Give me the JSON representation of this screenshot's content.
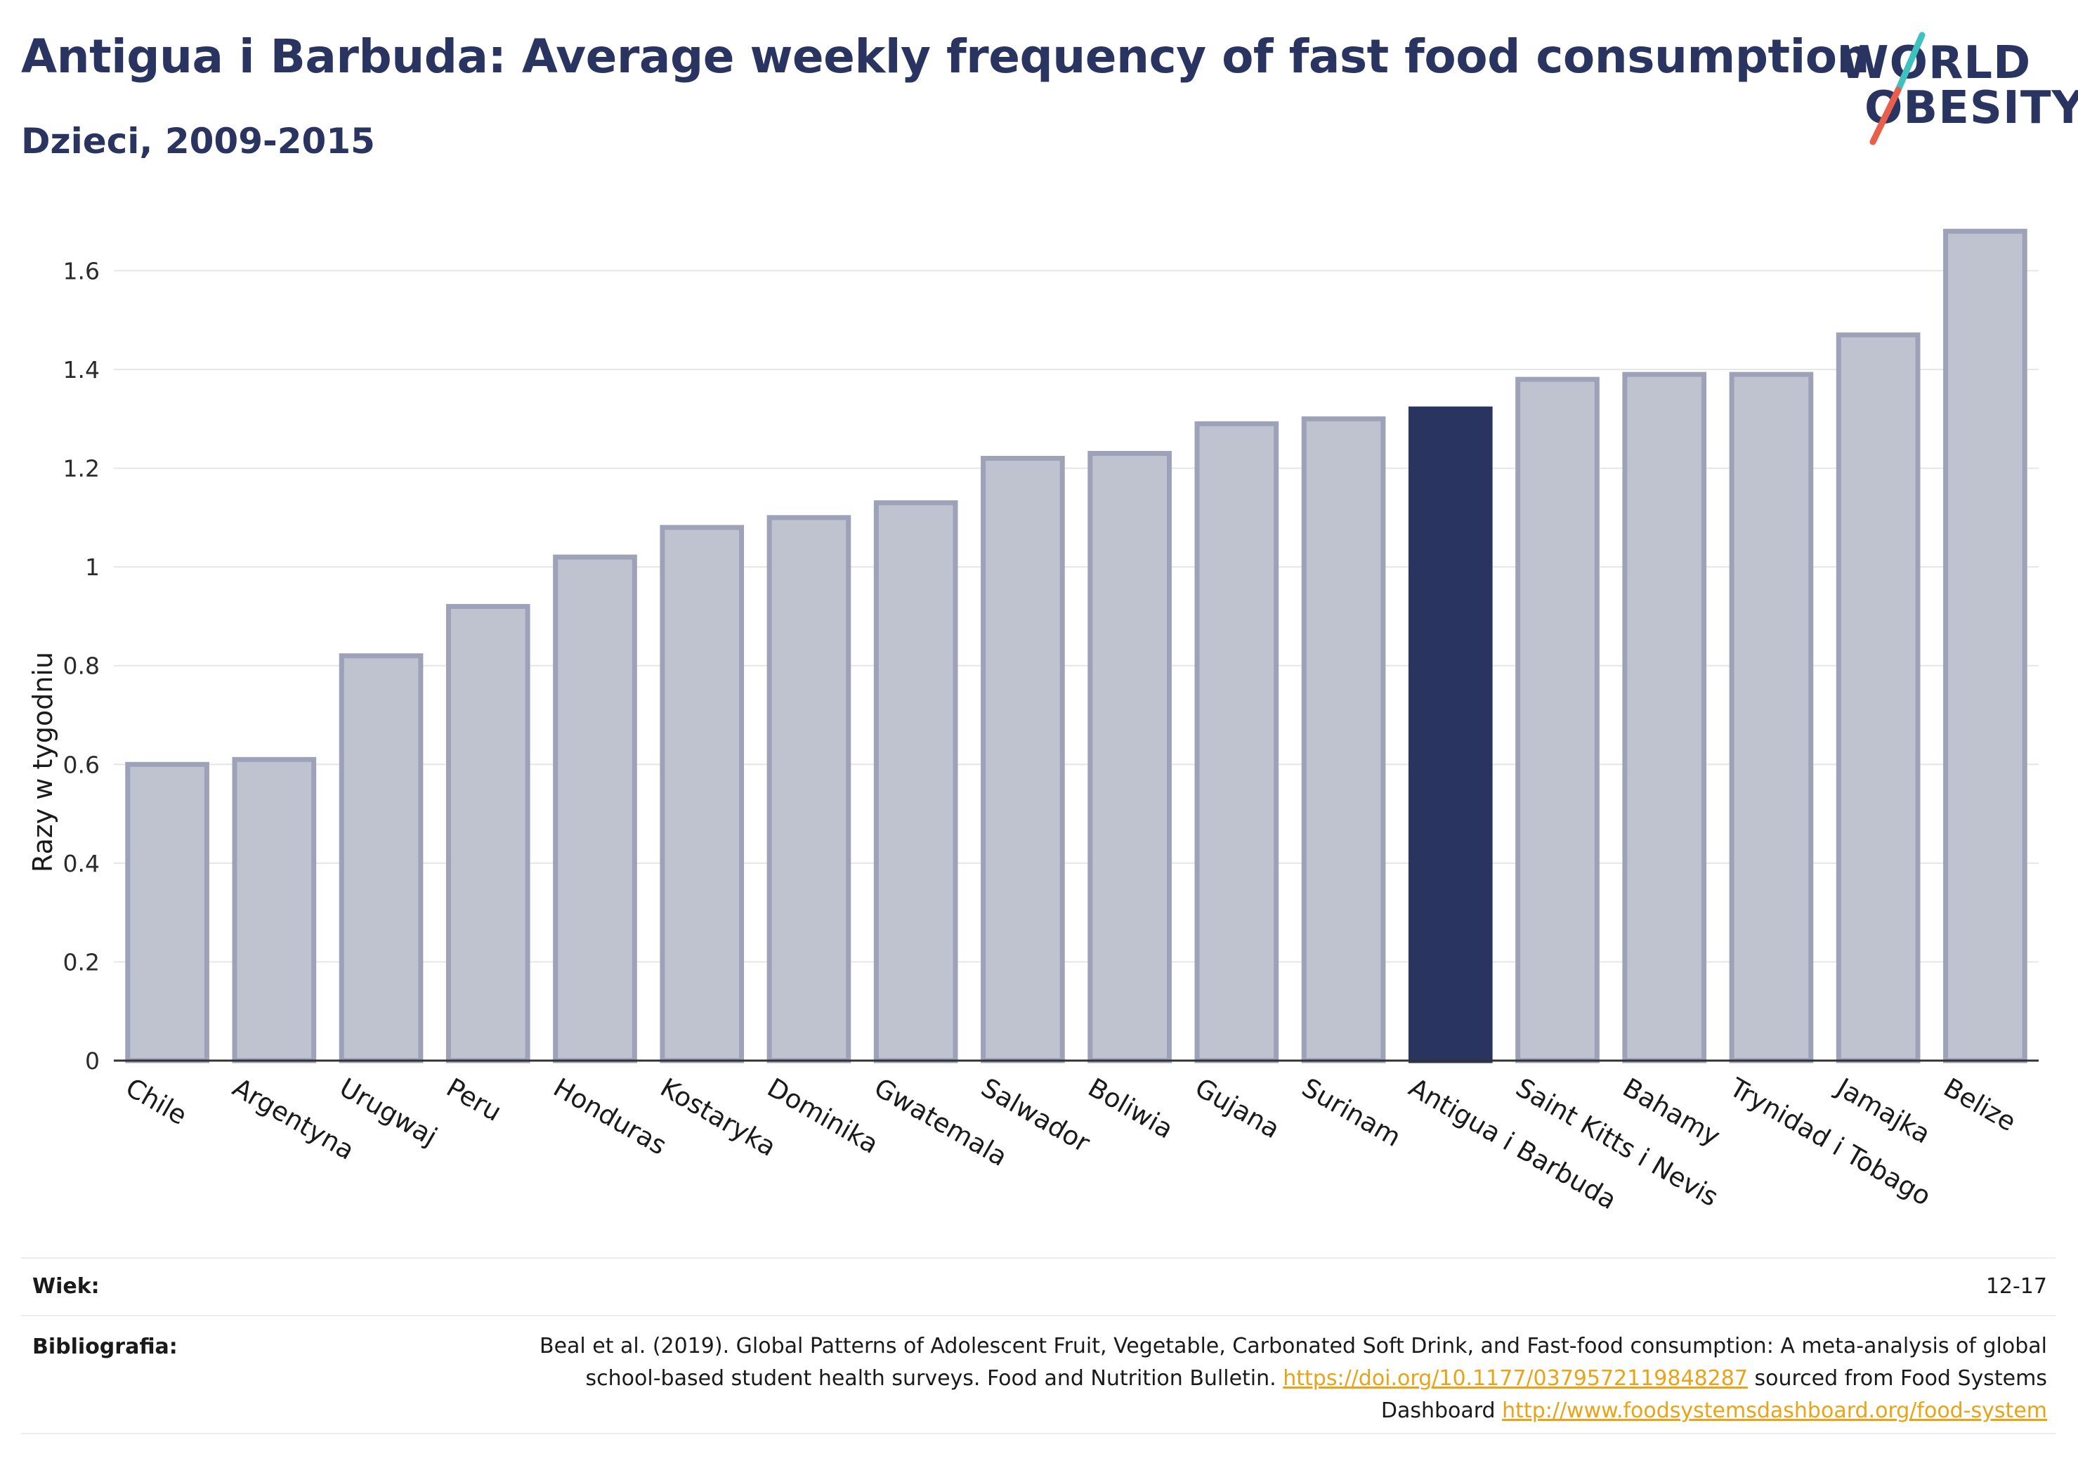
{
  "header": {
    "title": "Antigua i Barbuda: Average weekly frequency of fast food consumption",
    "subtitle": "Dzieci, 2009-2015"
  },
  "logo": {
    "line1": "WORLD",
    "line2": "OBESITY",
    "accent_colors": [
      "#3fc1c0",
      "#e8604c"
    ]
  },
  "chart_data": {
    "type": "bar",
    "title": "Antigua i Barbuda: Average weekly frequency of fast food consumption",
    "subtitle": "Dzieci, 2009-2015",
    "xlabel": "",
    "ylabel": "Razy w tygodniu",
    "ylim": [
      0,
      1.75
    ],
    "yticks": [
      "0",
      "0.2",
      "0.4",
      "0.6",
      "0.8",
      "1",
      "1.2",
      "1.4",
      "1.6"
    ],
    "grid": true,
    "legend": "none",
    "categories": [
      "Chile",
      "Argentyna",
      "Urugwaj",
      "Peru",
      "Honduras",
      "Kostaryka",
      "Dominika",
      "Gwatemala",
      "Salwador",
      "Boliwia",
      "Gujana",
      "Surinam",
      "Antigua i Barbuda",
      "Saint Kitts i Nevis",
      "Bahamy",
      "Trynidad i Tobago",
      "Jamajka",
      "Belize"
    ],
    "values": [
      0.6,
      0.61,
      0.82,
      0.92,
      1.02,
      1.08,
      1.1,
      1.13,
      1.22,
      1.23,
      1.29,
      1.3,
      1.32,
      1.38,
      1.39,
      1.39,
      1.47,
      1.68
    ],
    "highlight": "Antigua i Barbuda",
    "colors": {
      "bar": "#bfc2cf",
      "bar_border": "#9ea2b8",
      "highlight": "#2a3460",
      "gridline": "#e6e6e6",
      "axis": "#333333"
    }
  },
  "footer": {
    "age_label": "Wiek:",
    "age_value": "12-17",
    "bib_label": "Bibliografia:",
    "bib_text_1": "Beal et al. (2019). Global Patterns of Adolescent Fruit, Vegetable, Carbonated Soft Drink, and Fast-food consumption: A meta-analysis of global school-based student health surveys. Food and Nutrition Bulletin.",
    "bib_link_1": "https://doi.org/10.1177/0379572119848287",
    "bib_text_2": "sourced from Food Systems Dashboard",
    "bib_link_2": "http://www.foodsystemsdashboard.org/food-system",
    "link_color": "#e8a317"
  }
}
